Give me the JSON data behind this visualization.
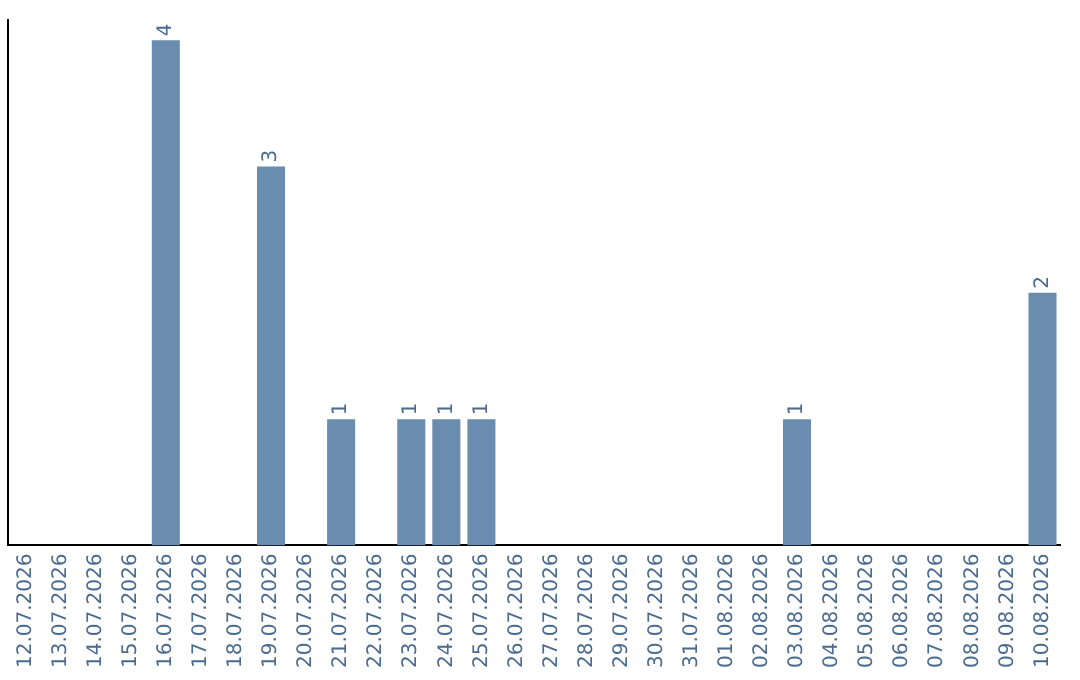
{
  "chart_data": {
    "type": "bar",
    "categories": [
      "12.07.2026",
      "13.07.2026",
      "14.07.2026",
      "15.07.2026",
      "16.07.2026",
      "17.07.2026",
      "18.07.2026",
      "19.07.2026",
      "20.07.2026",
      "21.07.2026",
      "22.07.2026",
      "23.07.2026",
      "24.07.2026",
      "25.07.2026",
      "26.07.2026",
      "27.07.2026",
      "28.07.2026",
      "29.07.2026",
      "30.07.2026",
      "31.07.2026",
      "01.08.2026",
      "02.08.2026",
      "03.08.2026",
      "04.08.2026",
      "05.08.2026",
      "06.08.2026",
      "07.08.2026",
      "08.08.2026",
      "09.08.2026",
      "10.08.2026"
    ],
    "values": [
      0,
      0,
      0,
      0,
      4,
      0,
      0,
      3,
      0,
      1,
      0,
      1,
      1,
      1,
      0,
      0,
      0,
      0,
      0,
      0,
      0,
      0,
      1,
      0,
      0,
      0,
      0,
      0,
      0,
      2
    ],
    "value_labels": [
      null,
      null,
      null,
      null,
      "4",
      null,
      null,
      "3",
      null,
      "1",
      null,
      "1",
      "1",
      "1",
      null,
      null,
      null,
      null,
      null,
      null,
      null,
      null,
      "1",
      null,
      null,
      null,
      null,
      null,
      null,
      "2"
    ],
    "color": "#6a8caf",
    "ylim": [
      0,
      4.16
    ],
    "tick_labels": "x",
    "grid": false,
    "legend": false
  }
}
